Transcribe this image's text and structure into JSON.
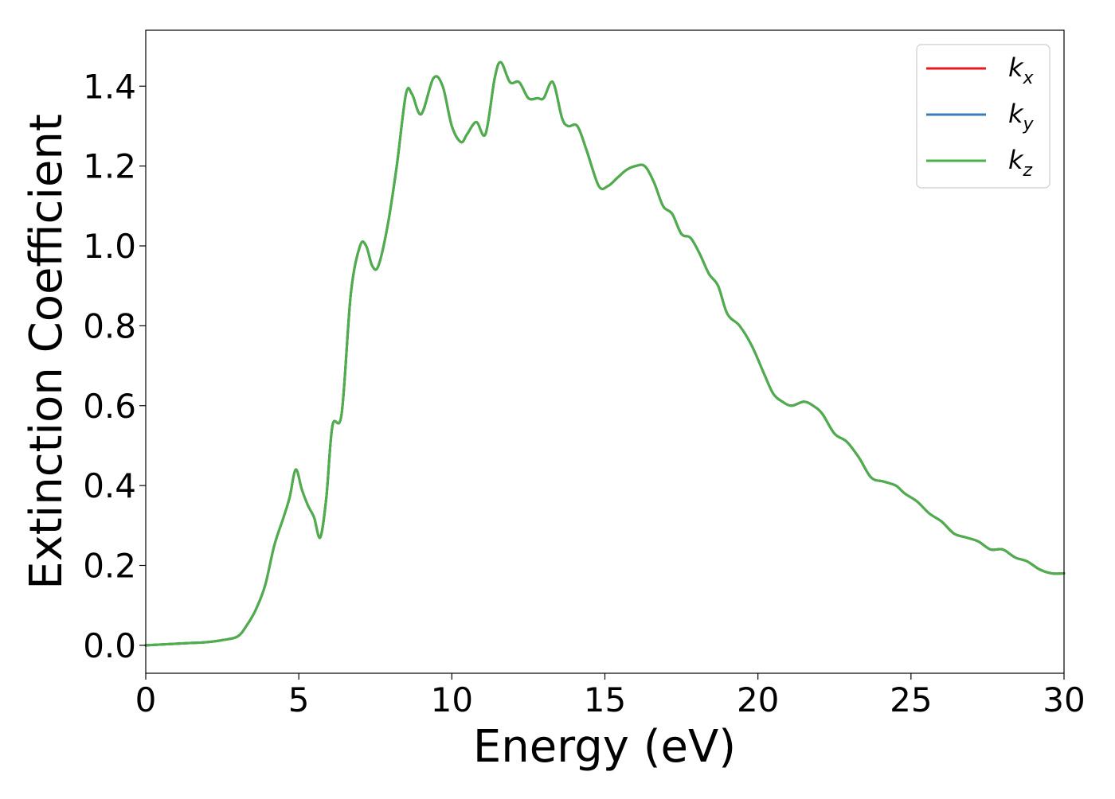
{
  "chart_data": {
    "type": "line",
    "xlabel": "Energy (eV)",
    "ylabel": "Extinction Coefficient",
    "xlim": [
      0,
      30
    ],
    "ylim": [
      -0.07,
      1.54
    ],
    "xticks": [
      0,
      5,
      10,
      15,
      20,
      25,
      30
    ],
    "xtick_labels": [
      "0",
      "5",
      "10",
      "15",
      "20",
      "25",
      "30"
    ],
    "yticks": [
      0.0,
      0.2,
      0.4,
      0.6,
      0.8,
      1.0,
      1.2,
      1.4
    ],
    "ytick_labels": [
      "0.0",
      "0.2",
      "0.4",
      "0.6",
      "0.8",
      "1.0",
      "1.2",
      "1.4"
    ],
    "grid": false,
    "legend_position": "top-right",
    "x": [
      0,
      0.5,
      1.0,
      1.5,
      2.0,
      2.5,
      3.0,
      3.3,
      3.6,
      3.9,
      4.2,
      4.5,
      4.7,
      4.9,
      5.1,
      5.3,
      5.5,
      5.7,
      5.9,
      6.1,
      6.4,
      6.7,
      7.0,
      7.2,
      7.4,
      7.6,
      7.9,
      8.2,
      8.5,
      8.7,
      9.0,
      9.4,
      9.7,
      10.0,
      10.3,
      10.5,
      10.8,
      11.1,
      11.4,
      11.6,
      11.9,
      12.2,
      12.5,
      12.8,
      13.0,
      13.3,
      13.6,
      13.8,
      14.1,
      14.4,
      14.8,
      15.1,
      15.4,
      15.7,
      16.0,
      16.3,
      16.6,
      16.9,
      17.2,
      17.5,
      17.8,
      18.1,
      18.4,
      18.7,
      19.0,
      19.4,
      19.8,
      20.2,
      20.5,
      20.8,
      21.1,
      21.5,
      21.8,
      22.1,
      22.5,
      22.9,
      23.3,
      23.7,
      24.1,
      24.5,
      24.8,
      25.2,
      25.6,
      26.0,
      26.4,
      26.8,
      27.2,
      27.6,
      28.0,
      28.4,
      28.8,
      29.2,
      29.6,
      30.0
    ],
    "series": [
      {
        "name": "k_x",
        "color": "#e41a1c",
        "values": [
          0.0,
          0.002,
          0.004,
          0.006,
          0.008,
          0.013,
          0.022,
          0.05,
          0.09,
          0.15,
          0.25,
          0.32,
          0.37,
          0.44,
          0.39,
          0.35,
          0.32,
          0.27,
          0.37,
          0.55,
          0.58,
          0.88,
          1.0,
          1.0,
          0.95,
          0.95,
          1.05,
          1.2,
          1.38,
          1.38,
          1.33,
          1.42,
          1.4,
          1.3,
          1.26,
          1.28,
          1.31,
          1.28,
          1.42,
          1.46,
          1.41,
          1.41,
          1.37,
          1.37,
          1.37,
          1.41,
          1.32,
          1.3,
          1.3,
          1.24,
          1.15,
          1.15,
          1.17,
          1.19,
          1.2,
          1.2,
          1.16,
          1.1,
          1.08,
          1.03,
          1.02,
          0.98,
          0.93,
          0.9,
          0.83,
          0.8,
          0.75,
          0.68,
          0.63,
          0.61,
          0.6,
          0.61,
          0.6,
          0.58,
          0.53,
          0.51,
          0.47,
          0.42,
          0.41,
          0.4,
          0.38,
          0.36,
          0.33,
          0.31,
          0.28,
          0.27,
          0.26,
          0.24,
          0.24,
          0.22,
          0.21,
          0.19,
          0.18,
          0.18
        ]
      },
      {
        "name": "k_y",
        "color": "#377eb8",
        "values": [
          0.0,
          0.002,
          0.004,
          0.006,
          0.008,
          0.013,
          0.022,
          0.05,
          0.09,
          0.15,
          0.25,
          0.32,
          0.37,
          0.44,
          0.39,
          0.35,
          0.32,
          0.27,
          0.37,
          0.55,
          0.58,
          0.88,
          1.0,
          1.0,
          0.95,
          0.95,
          1.05,
          1.2,
          1.38,
          1.38,
          1.33,
          1.42,
          1.4,
          1.3,
          1.26,
          1.28,
          1.31,
          1.28,
          1.42,
          1.46,
          1.41,
          1.41,
          1.37,
          1.37,
          1.37,
          1.41,
          1.32,
          1.3,
          1.3,
          1.24,
          1.15,
          1.15,
          1.17,
          1.19,
          1.2,
          1.2,
          1.16,
          1.1,
          1.08,
          1.03,
          1.02,
          0.98,
          0.93,
          0.9,
          0.83,
          0.8,
          0.75,
          0.68,
          0.63,
          0.61,
          0.6,
          0.61,
          0.6,
          0.58,
          0.53,
          0.51,
          0.47,
          0.42,
          0.41,
          0.4,
          0.38,
          0.36,
          0.33,
          0.31,
          0.28,
          0.27,
          0.26,
          0.24,
          0.24,
          0.22,
          0.21,
          0.19,
          0.18,
          0.18
        ]
      },
      {
        "name": "k_z",
        "color": "#4daf4a",
        "values": [
          0.0,
          0.002,
          0.004,
          0.006,
          0.008,
          0.013,
          0.022,
          0.05,
          0.09,
          0.15,
          0.25,
          0.32,
          0.37,
          0.44,
          0.39,
          0.35,
          0.32,
          0.27,
          0.37,
          0.55,
          0.58,
          0.88,
          1.0,
          1.0,
          0.95,
          0.95,
          1.05,
          1.2,
          1.38,
          1.38,
          1.33,
          1.42,
          1.4,
          1.3,
          1.26,
          1.28,
          1.31,
          1.28,
          1.42,
          1.46,
          1.41,
          1.41,
          1.37,
          1.37,
          1.37,
          1.41,
          1.32,
          1.3,
          1.3,
          1.24,
          1.15,
          1.15,
          1.17,
          1.19,
          1.2,
          1.2,
          1.16,
          1.1,
          1.08,
          1.03,
          1.02,
          0.98,
          0.93,
          0.9,
          0.83,
          0.8,
          0.75,
          0.68,
          0.63,
          0.61,
          0.6,
          0.61,
          0.6,
          0.58,
          0.53,
          0.51,
          0.47,
          0.42,
          0.41,
          0.4,
          0.38,
          0.36,
          0.33,
          0.31,
          0.28,
          0.27,
          0.26,
          0.24,
          0.24,
          0.22,
          0.21,
          0.19,
          0.18,
          0.18
        ]
      }
    ],
    "legend": [
      {
        "base": "k",
        "sub": "x",
        "color": "#e41a1c"
      },
      {
        "base": "k",
        "sub": "y",
        "color": "#377eb8"
      },
      {
        "base": "k",
        "sub": "z",
        "color": "#4daf4a"
      }
    ]
  }
}
